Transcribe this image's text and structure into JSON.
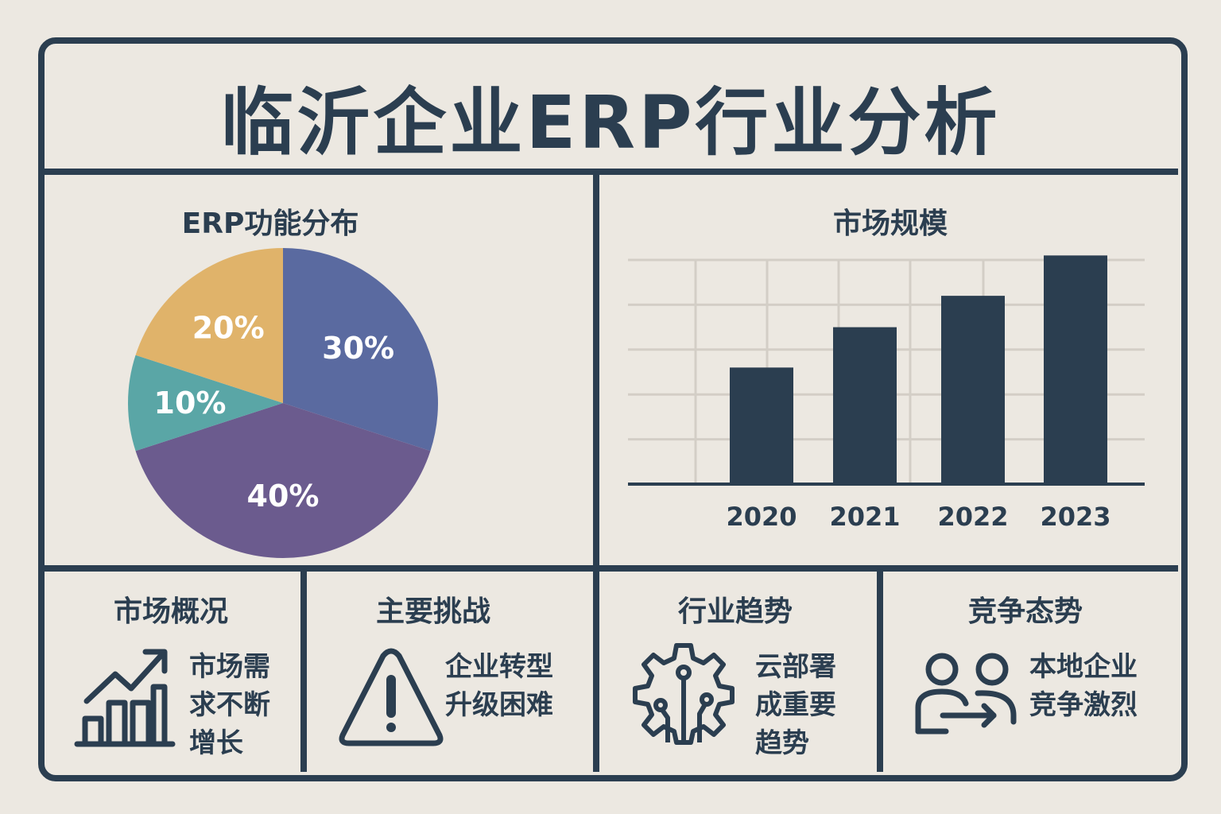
{
  "title": "临沂企业ERP行业分析",
  "colors": {
    "ink": "#2b3e50",
    "background": "#ece8e1",
    "grid": "#d3cec6"
  },
  "chart_data": [
    {
      "type": "pie",
      "title": "ERP功能分布",
      "slices": [
        {
          "label": "30%",
          "value": 30,
          "color": "#5a6aa0"
        },
        {
          "label": "40%",
          "value": 40,
          "color": "#6b5b8e"
        },
        {
          "label": "10%",
          "value": 10,
          "color": "#5aa6a6"
        },
        {
          "label": "20%",
          "value": 20,
          "color": "#e0b36a"
        }
      ]
    },
    {
      "type": "bar",
      "title": "市场规模",
      "categories": [
        "2020",
        "2021",
        "2022",
        "2023"
      ],
      "values": [
        2.6,
        3.5,
        4.2,
        5.1
      ],
      "ylim": [
        0,
        5
      ],
      "grid": true,
      "xlabel": "",
      "ylabel": ""
    }
  ],
  "cells": [
    {
      "title": "市场概况",
      "icon": "growth-chart-icon",
      "lines": [
        "市场需",
        "求不断",
        "增长"
      ]
    },
    {
      "title": "主要挑战",
      "icon": "warning-icon",
      "lines": [
        "企业转型",
        "升级困难"
      ]
    },
    {
      "title": "行业趋势",
      "icon": "gear-circuit-icon",
      "lines": [
        "云部署",
        "成重要",
        "趋势"
      ]
    },
    {
      "title": "竞争态势",
      "icon": "users-arrow-icon",
      "lines": [
        "本地企业",
        "竞争激烈"
      ]
    }
  ]
}
